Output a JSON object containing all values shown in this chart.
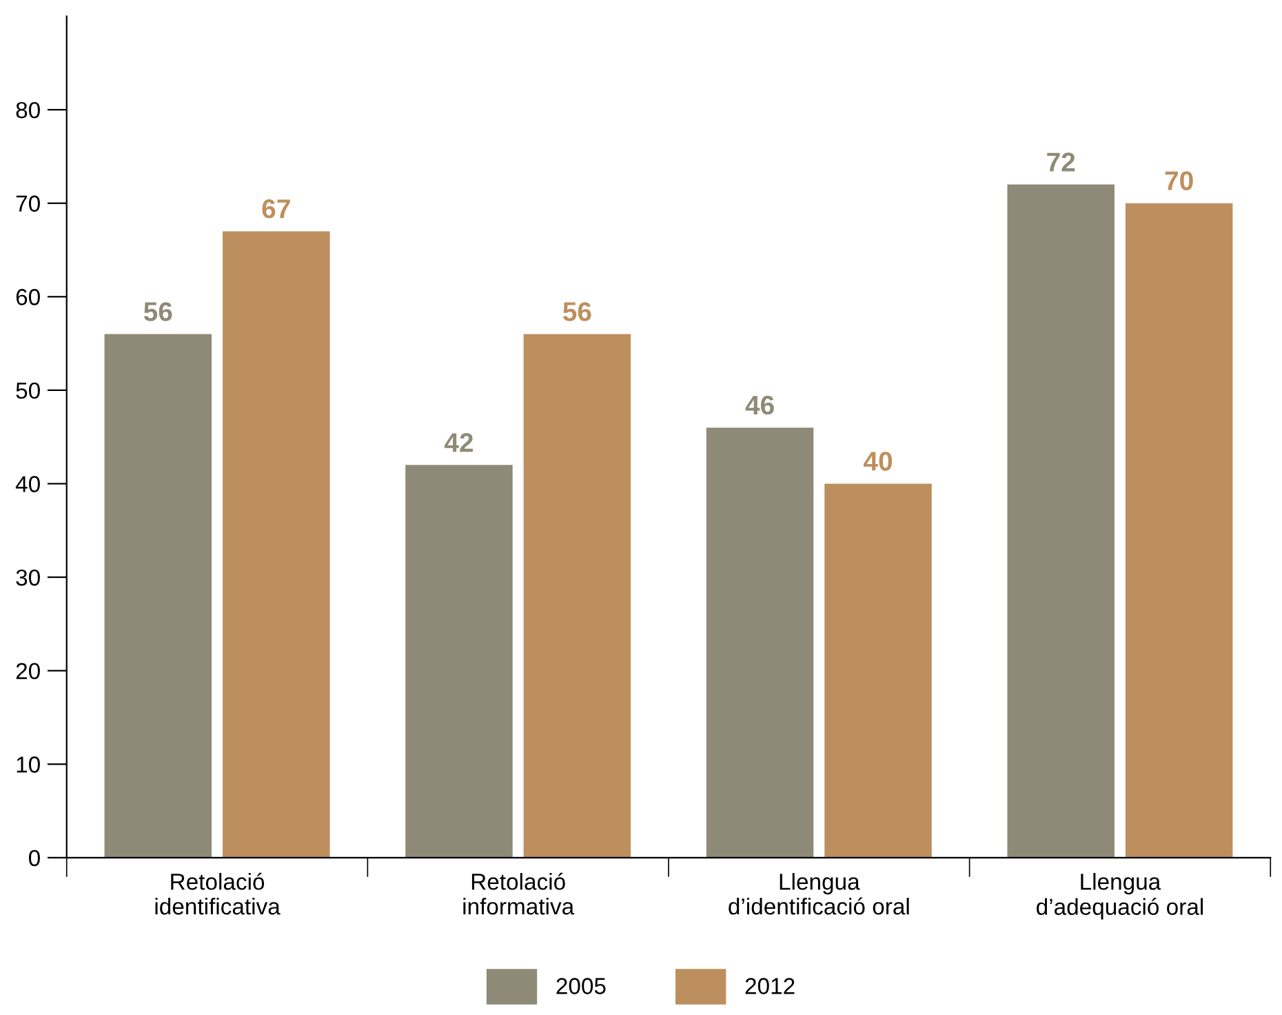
{
  "chart_data": {
    "type": "bar",
    "categories": [
      "Retolació\nidentificativa",
      "Retolació\ninformativa",
      "Llengua\nd’identificació oral",
      "Llengua\nd’adequació oral"
    ],
    "series": [
      {
        "name": "2005",
        "color": "#8f8a77",
        "values": [
          56,
          42,
          46,
          72
        ]
      },
      {
        "name": "2012",
        "color": "#bd8f5e",
        "values": [
          67,
          56,
          40,
          70
        ]
      }
    ],
    "ylim": [
      0,
      90
    ],
    "yticks": [
      0,
      10,
      20,
      30,
      40,
      50,
      60,
      70,
      80
    ],
    "data_labels": true,
    "grid": false,
    "legend": "bottom"
  }
}
